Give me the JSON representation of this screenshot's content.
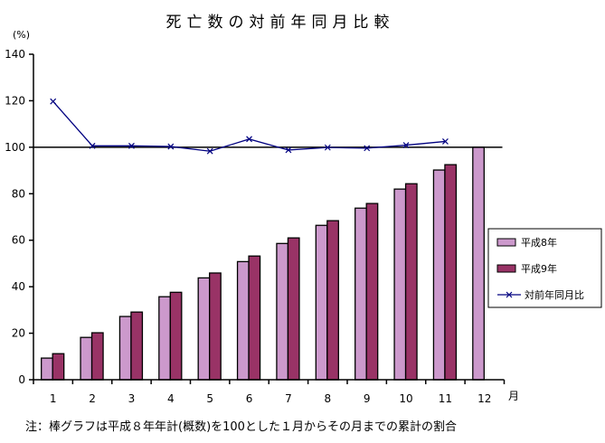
{
  "chart_data": {
    "type": "bar",
    "title": "死亡数の対前年同月比較",
    "ylabel": "(%)",
    "xlabel": "月",
    "ylim": [
      0,
      140
    ],
    "yticks": [
      0,
      20,
      40,
      60,
      80,
      100,
      120,
      140
    ],
    "categories": [
      "1",
      "2",
      "3",
      "4",
      "5",
      "6",
      "7",
      "8",
      "9",
      "10",
      "11",
      "12"
    ],
    "series": [
      {
        "name": "平成8年",
        "type": "bar",
        "color": "#cc99cc",
        "values": [
          9.3,
          18.2,
          27.2,
          35.7,
          43.8,
          50.8,
          58.6,
          66.4,
          73.8,
          82.0,
          90.2,
          100
        ]
      },
      {
        "name": "平成9年",
        "type": "bar",
        "color": "#993366",
        "values": [
          11.2,
          20.2,
          29.1,
          37.6,
          45.9,
          53.2,
          61.0,
          68.4,
          75.8,
          84.3,
          92.5,
          null
        ]
      },
      {
        "name": "対前年同月比",
        "type": "line",
        "color": "#000080",
        "marker": "x",
        "values": [
          119.7,
          100.6,
          100.6,
          100.3,
          98.3,
          103.5,
          98.8,
          99.9,
          99.6,
          100.9,
          102.5,
          null
        ]
      }
    ],
    "reference_line": 100,
    "grid": false,
    "legend": "right",
    "note": "注：棒グラフは平成８年年計(概数)を100とした１月からその月までの累計の割合"
  }
}
